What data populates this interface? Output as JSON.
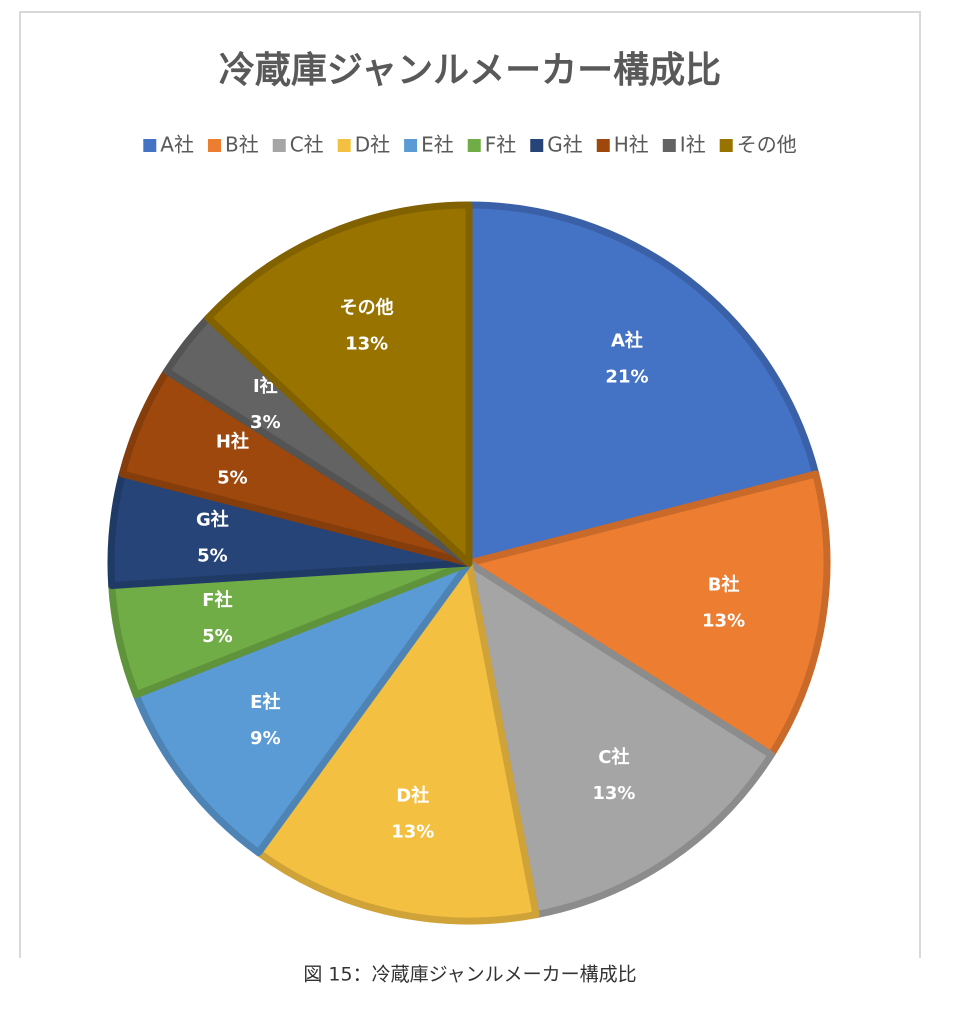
{
  "chart_data": {
    "type": "pie",
    "title": "冷蔵庫ジャンルメーカー構成比",
    "categories": [
      "A社",
      "B社",
      "C社",
      "D社",
      "E社",
      "F社",
      "G社",
      "H社",
      "I社",
      "その他"
    ],
    "values": [
      21,
      13,
      13,
      13,
      9,
      5,
      5,
      5,
      3,
      13
    ],
    "value_labels": [
      "21%",
      "13%",
      "13%",
      "13%",
      "9%",
      "5%",
      "5%",
      "5%",
      "3%",
      "13%"
    ],
    "colors": [
      "#4472c4",
      "#ed7d31",
      "#a5a5a5",
      "#f4c042",
      "#5b9bd5",
      "#70ad47",
      "#264478",
      "#9e480e",
      "#636363",
      "#997300"
    ],
    "legend": "top"
  },
  "caption": "図 15：冷蔵庫ジャンルメーカー構成比"
}
